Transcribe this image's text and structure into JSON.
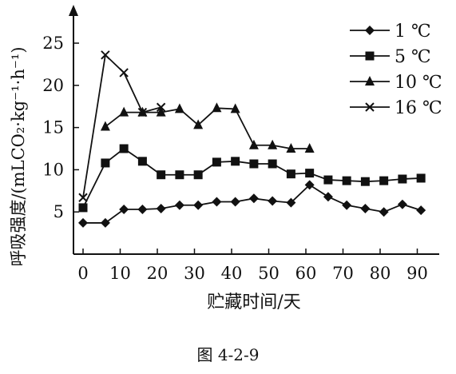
{
  "figure_caption": "图 4-2-9",
  "chart_data": {
    "type": "line",
    "xlabel": "贮藏时间/天",
    "ylabel": "呼吸强度/(mLCO₂·kg⁻¹·h⁻¹)",
    "xlim": [
      -2,
      95
    ],
    "ylim": [
      0,
      28
    ],
    "xticks": [
      0,
      10,
      20,
      30,
      40,
      50,
      60,
      70,
      80,
      90
    ],
    "yticks": [
      5,
      10,
      15,
      20,
      25
    ],
    "grid": false,
    "legend_position": "top-right",
    "series": [
      {
        "name": "1 ℃",
        "marker": "diamond",
        "x": [
          0,
          6,
          11,
          16,
          21,
          26,
          31,
          36,
          41,
          46,
          51,
          56,
          61,
          66,
          71,
          76,
          81,
          86,
          91
        ],
        "y": [
          3.7,
          3.7,
          5.3,
          5.3,
          5.4,
          5.8,
          5.8,
          6.2,
          6.2,
          6.6,
          6.3,
          6.1,
          8.2,
          6.8,
          5.8,
          5.4,
          5.0,
          5.9,
          5.2
        ]
      },
      {
        "name": "5 ℃",
        "marker": "square",
        "x": [
          0,
          6,
          11,
          16,
          21,
          26,
          31,
          36,
          41,
          46,
          51,
          56,
          61,
          66,
          71,
          76,
          81,
          86,
          91
        ],
        "y": [
          5.5,
          10.8,
          12.5,
          11.0,
          9.4,
          9.4,
          9.4,
          10.9,
          11.0,
          10.7,
          10.7,
          9.5,
          9.6,
          8.8,
          8.7,
          8.6,
          8.7,
          8.9,
          9.0
        ]
      },
      {
        "name": "10 ℃",
        "marker": "triangle",
        "x": [
          6,
          11,
          16,
          21,
          26,
          31,
          36,
          41,
          46,
          51,
          56,
          61
        ],
        "y": [
          15.1,
          16.8,
          16.8,
          16.8,
          17.2,
          15.3,
          17.3,
          17.2,
          12.9,
          12.9,
          12.5,
          12.5
        ]
      },
      {
        "name": "16 ℃",
        "marker": "cross",
        "x": [
          0,
          6,
          11,
          16,
          21
        ],
        "y": [
          6.7,
          23.6,
          21.5,
          16.8,
          17.4
        ]
      }
    ]
  }
}
